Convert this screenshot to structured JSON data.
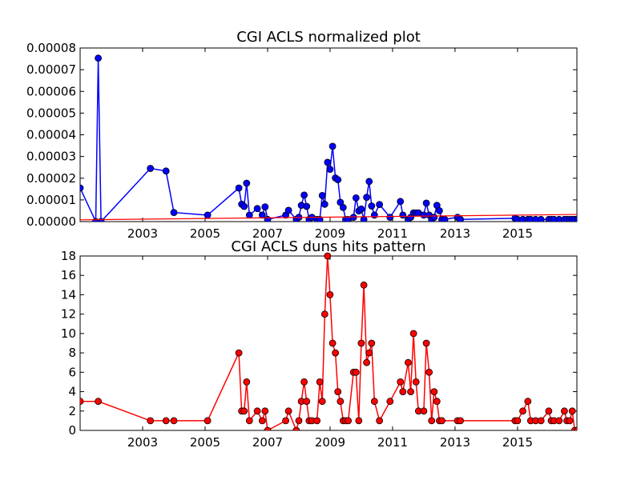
{
  "figure_background": "#ffffff",
  "chart_data": [
    {
      "type": "line",
      "title": "CGI ACLS normalized plot",
      "xlabel": "",
      "ylabel": "",
      "xlim": [
        2001.0,
        2016.9
      ],
      "ylim": [
        0,
        8e-05
      ],
      "x_ticks": [
        2003,
        2005,
        2007,
        2009,
        2011,
        2013,
        2015
      ],
      "x_tick_labels": [
        "2003",
        "2005",
        "2007",
        "2009",
        "2011",
        "2013",
        "2015"
      ],
      "y_ticks": [
        0,
        1e-05,
        2e-05,
        3e-05,
        4e-05,
        5e-05,
        6e-05,
        7e-05,
        8e-05
      ],
      "y_tick_labels": [
        "0.00000",
        "0.00001",
        "0.00002",
        "0.00003",
        "0.00004",
        "0.00005",
        "0.00006",
        "0.00007",
        "0.00008"
      ],
      "marker": "circle",
      "color": "#0000ff",
      "trendline": {
        "color": "#ff0000",
        "start": [
          2001.0,
          8e-07
        ],
        "end": [
          2016.9,
          3.3e-06
        ]
      },
      "series": [
        {
          "x": [
            2001.0,
            2001.5,
            2001.58,
            2001.67,
            2003.25,
            2003.75,
            2004.0,
            2005.08,
            2006.08,
            2006.17,
            2006.25,
            2006.33,
            2006.42,
            2006.67,
            2006.83,
            2006.92,
            2007.0,
            2007.58,
            2007.67,
            2007.92,
            2008.0,
            2008.08,
            2008.17,
            2008.25,
            2008.33,
            2008.42,
            2008.58,
            2008.67,
            2008.75,
            2008.83,
            2008.92,
            2009.0,
            2009.08,
            2009.17,
            2009.25,
            2009.33,
            2009.42,
            2009.5,
            2009.58,
            2009.75,
            2009.83,
            2009.92,
            2010.0,
            2010.08,
            2010.17,
            2010.25,
            2010.33,
            2010.42,
            2010.58,
            2010.92,
            2011.25,
            2011.33,
            2011.5,
            2011.58,
            2011.67,
            2011.75,
            2011.83,
            2012.0,
            2012.08,
            2012.17,
            2012.25,
            2012.33,
            2012.42,
            2012.5,
            2012.58,
            2012.67,
            2013.08,
            2013.17,
            2014.92,
            2015.0,
            2015.17,
            2015.33,
            2015.42,
            2015.58,
            2015.75,
            2016.0,
            2016.08,
            2016.17,
            2016.33,
            2016.5,
            2016.58,
            2016.67,
            2016.75,
            2016.83,
            2016.92
          ],
          "y": [
            1.55e-05,
            0,
            7.53e-05,
            0,
            2.45e-05,
            2.33e-05,
            4.2e-06,
            3e-06,
            1.55e-05,
            8e-06,
            7e-06,
            1.77e-05,
            3e-06,
            6e-06,
            3e-06,
            6.8e-06,
            1e-06,
            3e-06,
            5.2e-06,
            1e-06,
            2e-06,
            7.5e-06,
            1.22e-05,
            7e-06,
            1e-06,
            2e-06,
            1e-06,
            1e-06,
            1.2e-05,
            8e-06,
            2.73e-05,
            2.41e-05,
            3.47e-05,
            2.01e-05,
            1.93e-05,
            8.9e-06,
            6.5e-06,
            1e-06,
            1e-06,
            2e-06,
            1.09e-05,
            4.9e-06,
            5.8e-06,
            1e-06,
            1.12e-05,
            1.85e-05,
            7.2e-06,
            3e-06,
            7.9e-06,
            2e-06,
            9.3e-06,
            3e-06,
            1e-06,
            2e-06,
            4e-06,
            4e-06,
            4e-06,
            3e-06,
            8.5e-06,
            3e-06,
            1e-06,
            2e-06,
            7.5e-06,
            5e-06,
            1e-06,
            1e-06,
            2e-06,
            1e-06,
            1.5e-06,
            1e-06,
            1e-06,
            1e-06,
            1e-06,
            1e-06,
            1e-06,
            1e-06,
            1e-06,
            1e-06,
            1e-06,
            1e-06,
            1e-06,
            1e-06,
            1e-06,
            1e-06,
            1e-06
          ]
        }
      ]
    },
    {
      "type": "line",
      "title": "CGI ACLS duns hits pattern",
      "xlabel": "",
      "ylabel": "",
      "xlim": [
        2001.0,
        2016.9
      ],
      "ylim": [
        0,
        18
      ],
      "x_ticks": [
        2003,
        2005,
        2007,
        2009,
        2011,
        2013,
        2015
      ],
      "x_tick_labels": [
        "2003",
        "2005",
        "2007",
        "2009",
        "2011",
        "2013",
        "2015"
      ],
      "y_ticks": [
        0,
        2,
        4,
        6,
        8,
        10,
        12,
        14,
        16,
        18
      ],
      "y_tick_labels": [
        "0",
        "2",
        "4",
        "6",
        "8",
        "10",
        "12",
        "14",
        "16",
        "18"
      ],
      "marker": "circle",
      "color": "#ff0000",
      "series": [
        {
          "x": [
            2001.0,
            2001.58,
            2003.25,
            2003.75,
            2004.0,
            2005.08,
            2006.08,
            2006.17,
            2006.25,
            2006.33,
            2006.42,
            2006.67,
            2006.83,
            2006.92,
            2007.0,
            2007.58,
            2007.67,
            2007.92,
            2008.0,
            2008.08,
            2008.17,
            2008.25,
            2008.33,
            2008.42,
            2008.58,
            2008.67,
            2008.75,
            2008.83,
            2008.92,
            2009.0,
            2009.08,
            2009.17,
            2009.25,
            2009.33,
            2009.42,
            2009.5,
            2009.58,
            2009.75,
            2009.83,
            2009.92,
            2010.0,
            2010.08,
            2010.17,
            2010.25,
            2010.33,
            2010.42,
            2010.58,
            2010.92,
            2011.25,
            2011.33,
            2011.5,
            2011.58,
            2011.67,
            2011.75,
            2011.83,
            2012.0,
            2012.08,
            2012.17,
            2012.25,
            2012.33,
            2012.42,
            2012.5,
            2012.58,
            2013.08,
            2013.17,
            2014.92,
            2015.0,
            2015.17,
            2015.33,
            2015.42,
            2015.58,
            2015.75,
            2016.0,
            2016.08,
            2016.17,
            2016.33,
            2016.5,
            2016.58,
            2016.67,
            2016.75,
            2016.83,
            2016.92
          ],
          "y": [
            3,
            3,
            1,
            1,
            1,
            1,
            8,
            2,
            2,
            5,
            1,
            2,
            1,
            2,
            0,
            1,
            2,
            0,
            1,
            3,
            5,
            3,
            1,
            1,
            1,
            5,
            3,
            12,
            18,
            14,
            9,
            8,
            4,
            3,
            1,
            1,
            1,
            6,
            6,
            1,
            9,
            15,
            7,
            8,
            9,
            3,
            1,
            3,
            5,
            4,
            7,
            4,
            10,
            5,
            2,
            2,
            9,
            6,
            1,
            4,
            3,
            1,
            1,
            1,
            1,
            1,
            1,
            2,
            3,
            1,
            1,
            1,
            2,
            1,
            1,
            1,
            2,
            1,
            1,
            2,
            0,
            0
          ]
        }
      ]
    }
  ]
}
